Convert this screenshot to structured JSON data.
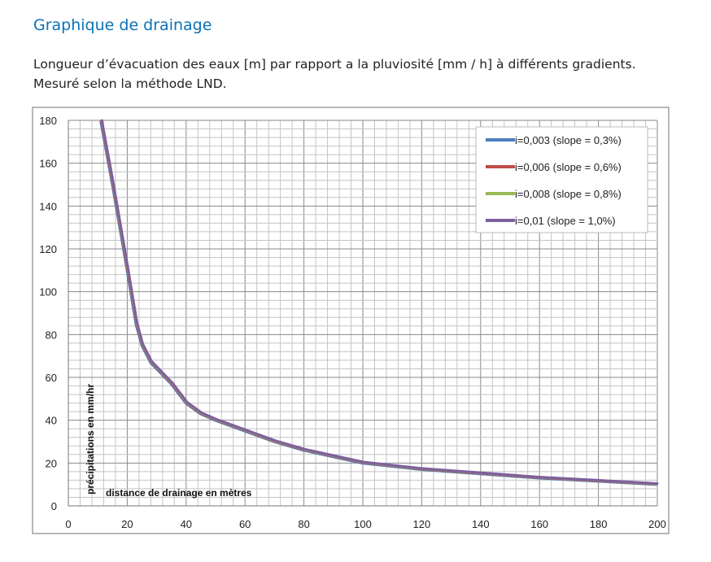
{
  "header": {
    "title": "Graphique de drainage",
    "subtitle_line1": "Longueur d’évacuation des eaux [m] par rapport a la pluviosité [mm / h] à différents gradients.",
    "subtitle_line2": "Mesuré selon la méthode LND."
  },
  "chart_data": {
    "type": "line",
    "xlabel": "distance de drainage en mètres",
    "ylabel": "précipitations en mm/hr",
    "xlim": [
      0,
      200
    ],
    "ylim": [
      0,
      180
    ],
    "xticks": [
      0,
      20,
      40,
      60,
      80,
      100,
      120,
      140,
      160,
      180,
      200
    ],
    "yticks": [
      0,
      20,
      40,
      60,
      80,
      100,
      120,
      140,
      160,
      180
    ],
    "minor_step": 4,
    "grid": true,
    "legend_position": "top-right",
    "base_curve": {
      "x": [
        11,
        15,
        20,
        23,
        25,
        28,
        35,
        40,
        45,
        50,
        60,
        70,
        80,
        100,
        120,
        140,
        160,
        180,
        200
      ],
      "y": [
        180,
        150,
        110,
        85,
        75,
        67,
        57,
        48,
        43,
        40,
        35,
        30,
        26,
        20,
        17,
        15,
        13,
        11.5,
        10
      ]
    },
    "series": [
      {
        "name": "i=0,003 (slope = 0,3%)",
        "color": "#4a7ebb",
        "offset": -0.6
      },
      {
        "name": "i=0,006 (slope = 0,6%)",
        "color": "#be4b48",
        "offset": 0
      },
      {
        "name": "i=0,008 (slope = 0,8%)",
        "color": "#98b954",
        "offset": 0.4
      },
      {
        "name": "i=0,01 (slope = 1,0%)",
        "color": "#7d5fa0",
        "offset": 1
      }
    ]
  }
}
